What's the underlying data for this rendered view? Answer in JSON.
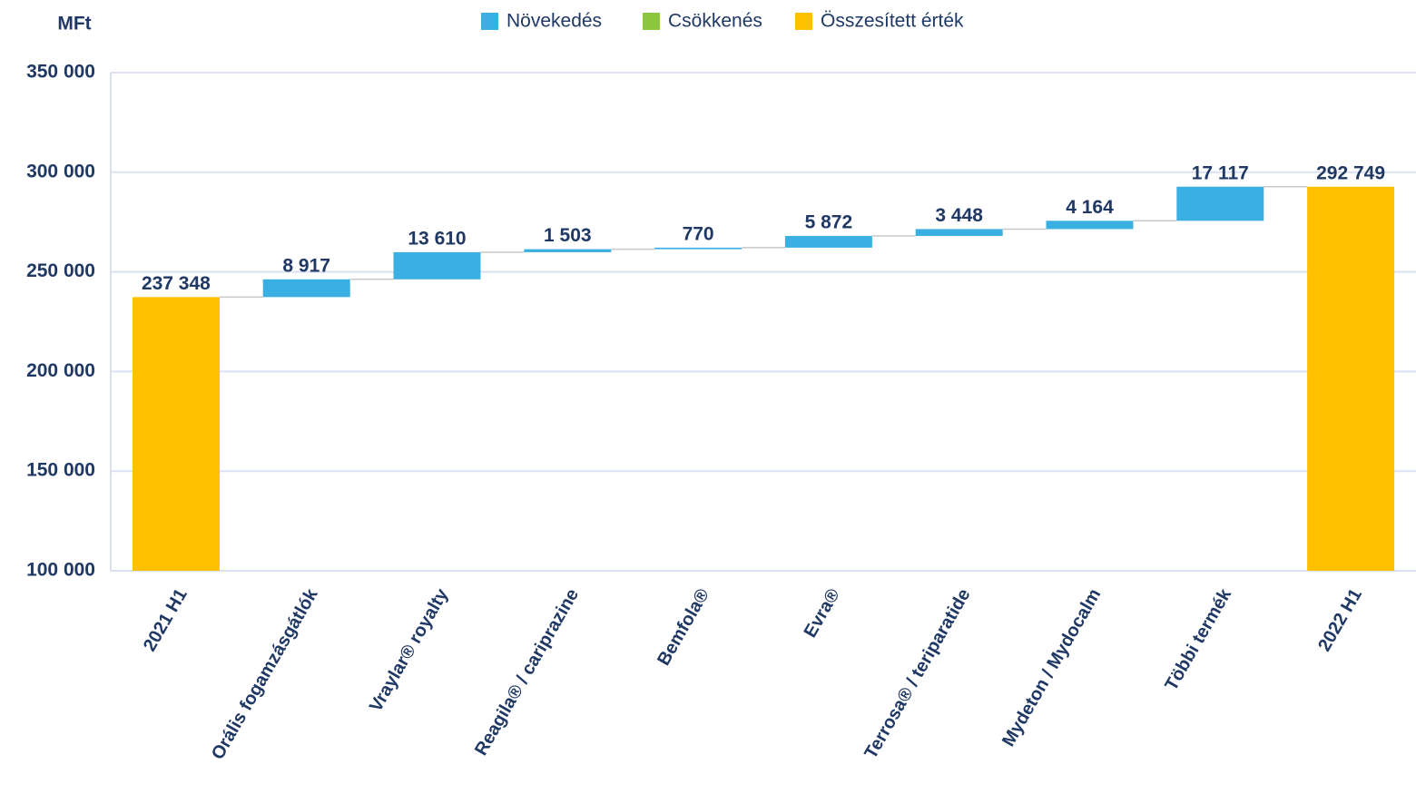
{
  "chart_data": {
    "type": "waterfall",
    "y_axis_label": "MFt",
    "categories": [
      "2021 H1",
      "Orális fogamzásgátlók",
      "Vraylar® royalty",
      "Reagila® / cariprazine",
      "Bemfola®",
      "Evra®",
      "Terrosa® / teriparatide",
      "Mydeton / Mydocalm",
      "Többi termék",
      "2022 H1"
    ],
    "values": [
      237348,
      8917,
      13610,
      1503,
      770,
      5872,
      3448,
      4164,
      17117,
      292749
    ],
    "value_labels": [
      "237 348",
      "8 917",
      "13 610",
      "1 503",
      "770",
      "5 872",
      "3 448",
      "4 164",
      "17 117",
      "292 749"
    ],
    "measures": [
      "total",
      "increase",
      "increase",
      "increase",
      "increase",
      "increase",
      "increase",
      "increase",
      "increase",
      "total"
    ],
    "legend": [
      {
        "name": "Növekedés",
        "color": "#3ab0e2"
      },
      {
        "name": "Csökkenés",
        "color": "#8dc63f"
      },
      {
        "name": "Összesített érték",
        "color": "#ffc000"
      }
    ],
    "ylim": [
      100000,
      350000
    ],
    "yticks": [
      {
        "value": 100000,
        "label": "100 000"
      },
      {
        "value": 150000,
        "label": "150 000"
      },
      {
        "value": 200000,
        "label": "200 000"
      },
      {
        "value": 250000,
        "label": "250 000"
      },
      {
        "value": 300000,
        "label": "300 000"
      },
      {
        "value": 350000,
        "label": "350 000"
      }
    ],
    "grid": true
  }
}
